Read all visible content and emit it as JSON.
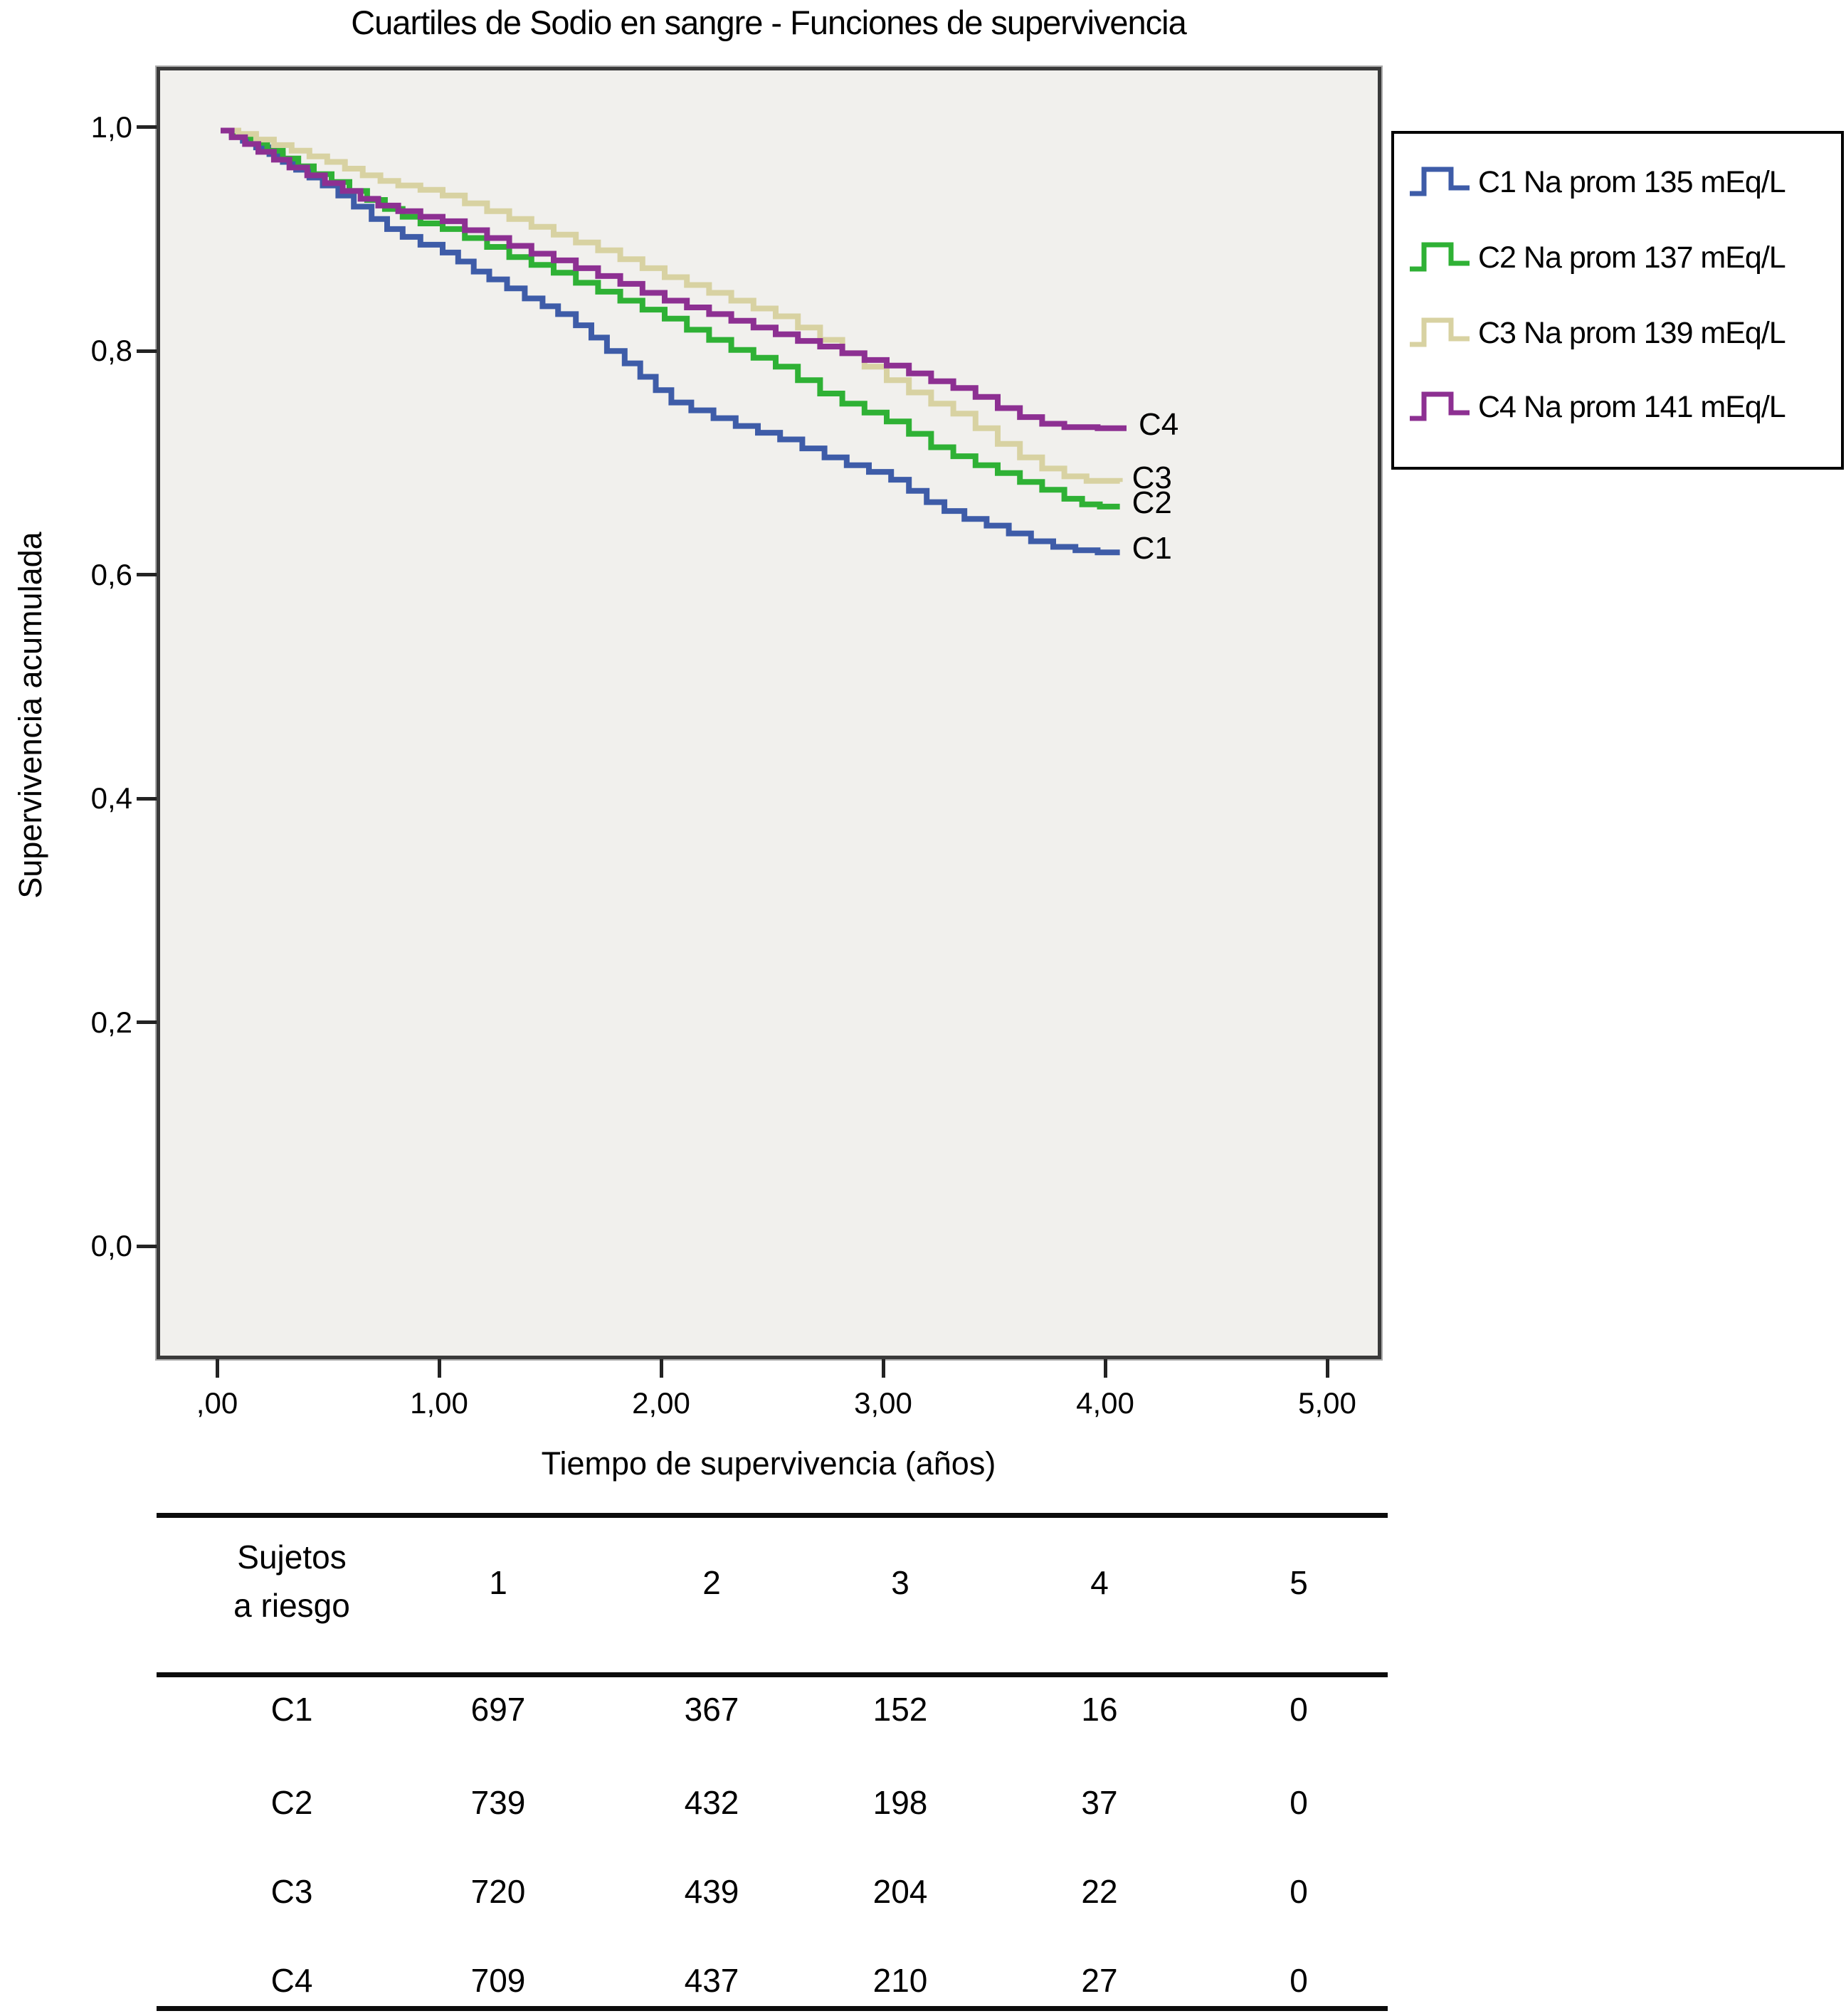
{
  "title": "Cuartiles de Sodio en sangre - Funciones de supervivencia",
  "y_axis": {
    "label": "Supervivencia acumulada",
    "ticks": [
      {
        "label": "1,0",
        "value": 1.0
      },
      {
        "label": "0,8",
        "value": 0.8
      },
      {
        "label": "0,6",
        "value": 0.6
      },
      {
        "label": "0,4",
        "value": 0.4
      },
      {
        "label": "0,2",
        "value": 0.2
      },
      {
        "label": "0,0",
        "value": 0.0
      }
    ]
  },
  "x_axis": {
    "label": "Tiempo de supervivencia (años)",
    "ticks": [
      {
        "label": ",00",
        "value": 0
      },
      {
        "label": "1,00",
        "value": 1
      },
      {
        "label": "2,00",
        "value": 2
      },
      {
        "label": "3,00",
        "value": 3
      },
      {
        "label": "4,00",
        "value": 4
      },
      {
        "label": "5,00",
        "value": 5
      }
    ]
  },
  "legend": {
    "items": [
      {
        "id": "C1",
        "label": "C1 Na prom 135 mEq/L",
        "color": "#3e5ca8"
      },
      {
        "id": "C2",
        "label": "C2 Na prom 137 mEq/L",
        "color": "#2fb135"
      },
      {
        "id": "C3",
        "label": "C3 Na prom 139 mEq/L",
        "color": "#d8d2a2"
      },
      {
        "id": "C4",
        "label": "C4 Na prom 141 mEq/L",
        "color": "#8d3092"
      }
    ]
  },
  "colors": {
    "plot_background": "#f1f0ed",
    "frame": "#3a3a3a",
    "text": "#000000"
  },
  "chart_data": {
    "type": "line",
    "subtype": "kaplan-meier-step",
    "title": "Cuartiles de Sodio en sangre - Funciones de supervivencia",
    "xlabel": "Tiempo de supervivencia (años)",
    "ylabel": "Supervivencia acumulada",
    "xlim": [
      0,
      5
    ],
    "ylim": [
      0.0,
      1.0
    ],
    "grid": false,
    "legend_position": "right",
    "series": [
      {
        "name": "C1 Na prom 135 mEq/L",
        "end_label": "C1",
        "color": "#3e5ca8",
        "points": [
          [
            0,
            1.0
          ],
          [
            0.05,
            0.996
          ],
          [
            0.1,
            0.991
          ],
          [
            0.16,
            0.985
          ],
          [
            0.22,
            0.979
          ],
          [
            0.28,
            0.972
          ],
          [
            0.34,
            0.965
          ],
          [
            0.4,
            0.958
          ],
          [
            0.46,
            0.951
          ],
          [
            0.53,
            0.942
          ],
          [
            0.6,
            0.932
          ],
          [
            0.68,
            0.921
          ],
          [
            0.75,
            0.912
          ],
          [
            0.82,
            0.905
          ],
          [
            0.9,
            0.898
          ],
          [
            1.0,
            0.891
          ],
          [
            1.07,
            0.883
          ],
          [
            1.14,
            0.874
          ],
          [
            1.21,
            0.867
          ],
          [
            1.29,
            0.859
          ],
          [
            1.37,
            0.85
          ],
          [
            1.45,
            0.843
          ],
          [
            1.52,
            0.836
          ],
          [
            1.6,
            0.826
          ],
          [
            1.67,
            0.815
          ],
          [
            1.74,
            0.803
          ],
          [
            1.82,
            0.792
          ],
          [
            1.89,
            0.78
          ],
          [
            1.96,
            0.768
          ],
          [
            2.03,
            0.757
          ],
          [
            2.12,
            0.75
          ],
          [
            2.22,
            0.743
          ],
          [
            2.32,
            0.736
          ],
          [
            2.42,
            0.73
          ],
          [
            2.52,
            0.724
          ],
          [
            2.62,
            0.716
          ],
          [
            2.72,
            0.708
          ],
          [
            2.82,
            0.701
          ],
          [
            2.92,
            0.695
          ],
          [
            3.02,
            0.688
          ],
          [
            3.1,
            0.678
          ],
          [
            3.18,
            0.668
          ],
          [
            3.26,
            0.66
          ],
          [
            3.35,
            0.653
          ],
          [
            3.45,
            0.647
          ],
          [
            3.55,
            0.64
          ],
          [
            3.65,
            0.633
          ],
          [
            3.75,
            0.628
          ],
          [
            3.85,
            0.625
          ],
          [
            3.95,
            0.623
          ],
          [
            4.05,
            0.623
          ]
        ]
      },
      {
        "name": "C2 Na prom 137 mEq/L",
        "end_label": "C2",
        "color": "#2fb135",
        "points": [
          [
            0,
            1.0
          ],
          [
            0.07,
            0.995
          ],
          [
            0.14,
            0.989
          ],
          [
            0.21,
            0.982
          ],
          [
            0.28,
            0.975
          ],
          [
            0.35,
            0.968
          ],
          [
            0.42,
            0.961
          ],
          [
            0.5,
            0.954
          ],
          [
            0.58,
            0.946
          ],
          [
            0.66,
            0.938
          ],
          [
            0.74,
            0.93
          ],
          [
            0.82,
            0.923
          ],
          [
            0.9,
            0.917
          ],
          [
            1.0,
            0.912
          ],
          [
            1.1,
            0.904
          ],
          [
            1.2,
            0.896
          ],
          [
            1.3,
            0.887
          ],
          [
            1.4,
            0.88
          ],
          [
            1.5,
            0.873
          ],
          [
            1.6,
            0.864
          ],
          [
            1.7,
            0.856
          ],
          [
            1.8,
            0.848
          ],
          [
            1.9,
            0.84
          ],
          [
            2.0,
            0.832
          ],
          [
            2.1,
            0.822
          ],
          [
            2.2,
            0.813
          ],
          [
            2.3,
            0.804
          ],
          [
            2.4,
            0.797
          ],
          [
            2.5,
            0.789
          ],
          [
            2.6,
            0.777
          ],
          [
            2.7,
            0.765
          ],
          [
            2.8,
            0.756
          ],
          [
            2.9,
            0.748
          ],
          [
            3.0,
            0.74
          ],
          [
            3.1,
            0.729
          ],
          [
            3.2,
            0.717
          ],
          [
            3.3,
            0.709
          ],
          [
            3.4,
            0.701
          ],
          [
            3.5,
            0.694
          ],
          [
            3.6,
            0.686
          ],
          [
            3.7,
            0.679
          ],
          [
            3.8,
            0.671
          ],
          [
            3.88,
            0.666
          ],
          [
            3.96,
            0.664
          ],
          [
            4.05,
            0.664
          ]
        ]
      },
      {
        "name": "C3 Na prom 139 mEq/L",
        "end_label": "C3",
        "color": "#d8d2a2",
        "points": [
          [
            0,
            1.0
          ],
          [
            0.08,
            0.997
          ],
          [
            0.16,
            0.992
          ],
          [
            0.24,
            0.987
          ],
          [
            0.32,
            0.982
          ],
          [
            0.4,
            0.977
          ],
          [
            0.48,
            0.972
          ],
          [
            0.56,
            0.966
          ],
          [
            0.64,
            0.96
          ],
          [
            0.72,
            0.955
          ],
          [
            0.8,
            0.951
          ],
          [
            0.9,
            0.947
          ],
          [
            1.0,
            0.942
          ],
          [
            1.1,
            0.935
          ],
          [
            1.2,
            0.928
          ],
          [
            1.3,
            0.921
          ],
          [
            1.4,
            0.914
          ],
          [
            1.5,
            0.907
          ],
          [
            1.6,
            0.9
          ],
          [
            1.7,
            0.893
          ],
          [
            1.8,
            0.885
          ],
          [
            1.9,
            0.877
          ],
          [
            2.0,
            0.869
          ],
          [
            2.1,
            0.862
          ],
          [
            2.2,
            0.855
          ],
          [
            2.3,
            0.848
          ],
          [
            2.4,
            0.841
          ],
          [
            2.5,
            0.834
          ],
          [
            2.6,
            0.824
          ],
          [
            2.7,
            0.813
          ],
          [
            2.8,
            0.801
          ],
          [
            2.9,
            0.789
          ],
          [
            3.0,
            0.777
          ],
          [
            3.1,
            0.766
          ],
          [
            3.2,
            0.756
          ],
          [
            3.3,
            0.747
          ],
          [
            3.4,
            0.734
          ],
          [
            3.5,
            0.72
          ],
          [
            3.6,
            0.708
          ],
          [
            3.7,
            0.698
          ],
          [
            3.8,
            0.691
          ],
          [
            3.9,
            0.687
          ],
          [
            4.05,
            0.686
          ]
        ]
      },
      {
        "name": "C4 Na prom 141 mEq/L",
        "end_label": "C4",
        "color": "#8d3092",
        "points": [
          [
            0,
            1.0
          ],
          [
            0.05,
            0.994
          ],
          [
            0.11,
            0.988
          ],
          [
            0.17,
            0.981
          ],
          [
            0.24,
            0.974
          ],
          [
            0.31,
            0.967
          ],
          [
            0.39,
            0.96
          ],
          [
            0.47,
            0.953
          ],
          [
            0.55,
            0.946
          ],
          [
            0.63,
            0.939
          ],
          [
            0.71,
            0.933
          ],
          [
            0.8,
            0.928
          ],
          [
            0.9,
            0.923
          ],
          [
            1.0,
            0.919
          ],
          [
            1.1,
            0.911
          ],
          [
            1.2,
            0.904
          ],
          [
            1.3,
            0.897
          ],
          [
            1.4,
            0.89
          ],
          [
            1.5,
            0.884
          ],
          [
            1.6,
            0.877
          ],
          [
            1.7,
            0.87
          ],
          [
            1.8,
            0.863
          ],
          [
            1.9,
            0.855
          ],
          [
            2.0,
            0.848
          ],
          [
            2.1,
            0.842
          ],
          [
            2.2,
            0.836
          ],
          [
            2.3,
            0.83
          ],
          [
            2.4,
            0.824
          ],
          [
            2.5,
            0.818
          ],
          [
            2.6,
            0.812
          ],
          [
            2.7,
            0.807
          ],
          [
            2.8,
            0.801
          ],
          [
            2.9,
            0.795
          ],
          [
            3.0,
            0.79
          ],
          [
            3.1,
            0.783
          ],
          [
            3.2,
            0.776
          ],
          [
            3.3,
            0.77
          ],
          [
            3.4,
            0.762
          ],
          [
            3.5,
            0.752
          ],
          [
            3.6,
            0.744
          ],
          [
            3.7,
            0.738
          ],
          [
            3.8,
            0.735
          ],
          [
            3.95,
            0.734
          ],
          [
            4.08,
            0.734
          ]
        ]
      }
    ]
  },
  "risk_table": {
    "header_line1": "Sujetos",
    "header_line2": "a riesgo",
    "columns": [
      "1",
      "2",
      "3",
      "4",
      "5"
    ],
    "rows": [
      {
        "label": "C1",
        "values": [
          "697",
          "367",
          "152",
          "16",
          "0"
        ]
      },
      {
        "label": "C2",
        "values": [
          "739",
          "432",
          "198",
          "37",
          "0"
        ]
      },
      {
        "label": "C3",
        "values": [
          "720",
          "439",
          "204",
          "22",
          "0"
        ]
      },
      {
        "label": "C4",
        "values": [
          "709",
          "437",
          "210",
          "27",
          "0"
        ]
      }
    ]
  }
}
